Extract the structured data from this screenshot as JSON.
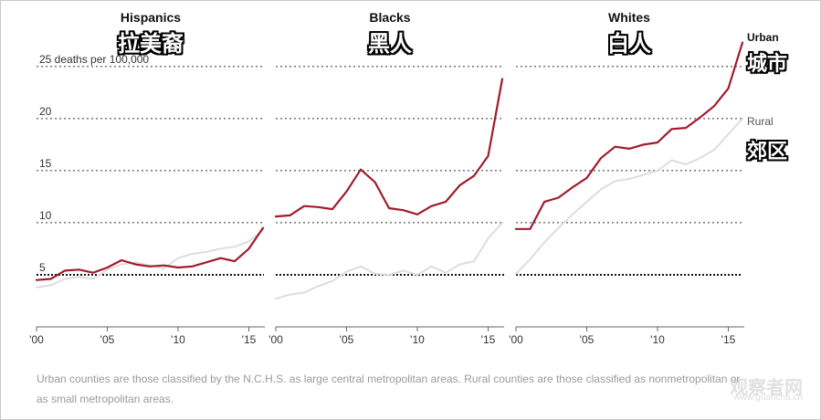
{
  "chart_data": {
    "type": "line",
    "unit_label": "25 deaths per 100,000",
    "y_ticks": [
      5,
      10,
      15,
      20,
      25
    ],
    "ylim": [
      0,
      27
    ],
    "x_tick_labels": [
      "'00",
      "'05",
      "'10",
      "'15"
    ],
    "x_tick_values": [
      2000,
      2005,
      2010,
      2015
    ],
    "xlim": [
      2000,
      2016
    ],
    "panels": [
      {
        "title": "Hispanics",
        "title_cn": "拉美裔",
        "series": [
          {
            "name": "Urban",
            "color": "#a01c2c",
            "x": [
              2000,
              2001,
              2002,
              2003,
              2004,
              2005,
              2006,
              2007,
              2008,
              2009,
              2010,
              2011,
              2012,
              2013,
              2014,
              2015,
              2016
            ],
            "values": [
              4.5,
              4.6,
              5.4,
              5.5,
              5.2,
              5.7,
              6.4,
              6.0,
              5.8,
              5.9,
              5.7,
              5.8,
              6.2,
              6.6,
              6.3,
              7.5,
              9.5
            ]
          },
          {
            "name": "Rural",
            "color": "#dddddd",
            "x": [
              2000,
              2001,
              2002,
              2003,
              2004,
              2005,
              2006,
              2007,
              2008,
              2009,
              2010,
              2011,
              2012,
              2013,
              2014,
              2015,
              2016
            ],
            "values": [
              3.8,
              4.0,
              4.6,
              4.8,
              4.6,
              5.5,
              6.0,
              6.2,
              5.9,
              5.6,
              6.6,
              7.0,
              7.2,
              7.5,
              7.7,
              8.2,
              9.3
            ]
          }
        ]
      },
      {
        "title": "Blacks",
        "title_cn": "黑人",
        "series": [
          {
            "name": "Urban",
            "color": "#a01c2c",
            "x": [
              2000,
              2001,
              2002,
              2003,
              2004,
              2005,
              2006,
              2007,
              2008,
              2009,
              2010,
              2011,
              2012,
              2013,
              2014,
              2015,
              2016
            ],
            "values": [
              10.6,
              10.7,
              11.6,
              11.5,
              11.3,
              13.0,
              15.1,
              13.9,
              11.4,
              11.2,
              10.8,
              11.6,
              12.0,
              13.6,
              14.5,
              16.4,
              23.8
            ]
          },
          {
            "name": "Rural",
            "color": "#dddddd",
            "x": [
              2000,
              2001,
              2002,
              2003,
              2004,
              2005,
              2006,
              2007,
              2008,
              2009,
              2010,
              2011,
              2012,
              2013,
              2014,
              2015,
              2016
            ],
            "values": [
              2.7,
              3.1,
              3.3,
              3.9,
              4.4,
              5.3,
              5.8,
              5.1,
              5.0,
              5.4,
              5.0,
              5.8,
              5.2,
              6.0,
              6.3,
              8.5,
              10.0
            ]
          }
        ]
      },
      {
        "title": "Whites",
        "title_cn": "白人",
        "series": [
          {
            "name": "Urban",
            "color": "#a01c2c",
            "x": [
              2000,
              2001,
              2002,
              2003,
              2004,
              2005,
              2006,
              2007,
              2008,
              2009,
              2010,
              2011,
              2012,
              2013,
              2014,
              2015,
              2016
            ],
            "values": [
              9.4,
              9.4,
              12.0,
              12.4,
              13.4,
              14.3,
              16.2,
              17.3,
              17.1,
              17.5,
              17.7,
              19.0,
              19.1,
              20.1,
              21.2,
              22.9,
              27.3
            ]
          },
          {
            "name": "Rural",
            "color": "#dddddd",
            "x": [
              2000,
              2001,
              2002,
              2003,
              2004,
              2005,
              2006,
              2007,
              2008,
              2009,
              2010,
              2011,
              2012,
              2013,
              2014,
              2015,
              2016
            ],
            "values": [
              5.1,
              6.5,
              8.1,
              9.5,
              10.8,
              12.0,
              13.2,
              14.0,
              14.2,
              14.6,
              15.0,
              16.0,
              15.6,
              16.2,
              17.0,
              18.5,
              20.0
            ]
          }
        ]
      }
    ],
    "legend": [
      {
        "name": "Urban",
        "name_cn": "城市",
        "color": "#a01c2c"
      },
      {
        "name": "Rural",
        "name_cn": "郊区",
        "color": "#999999"
      }
    ]
  },
  "footnote": "Urban counties are those classified by the N.C.H.S. as large central metropolitan areas. Rural counties are those classified as nonmetropolitan or as small metropolitan areas.",
  "watermark": {
    "text": "观察者网",
    "sub": "www.guancha.cn"
  }
}
